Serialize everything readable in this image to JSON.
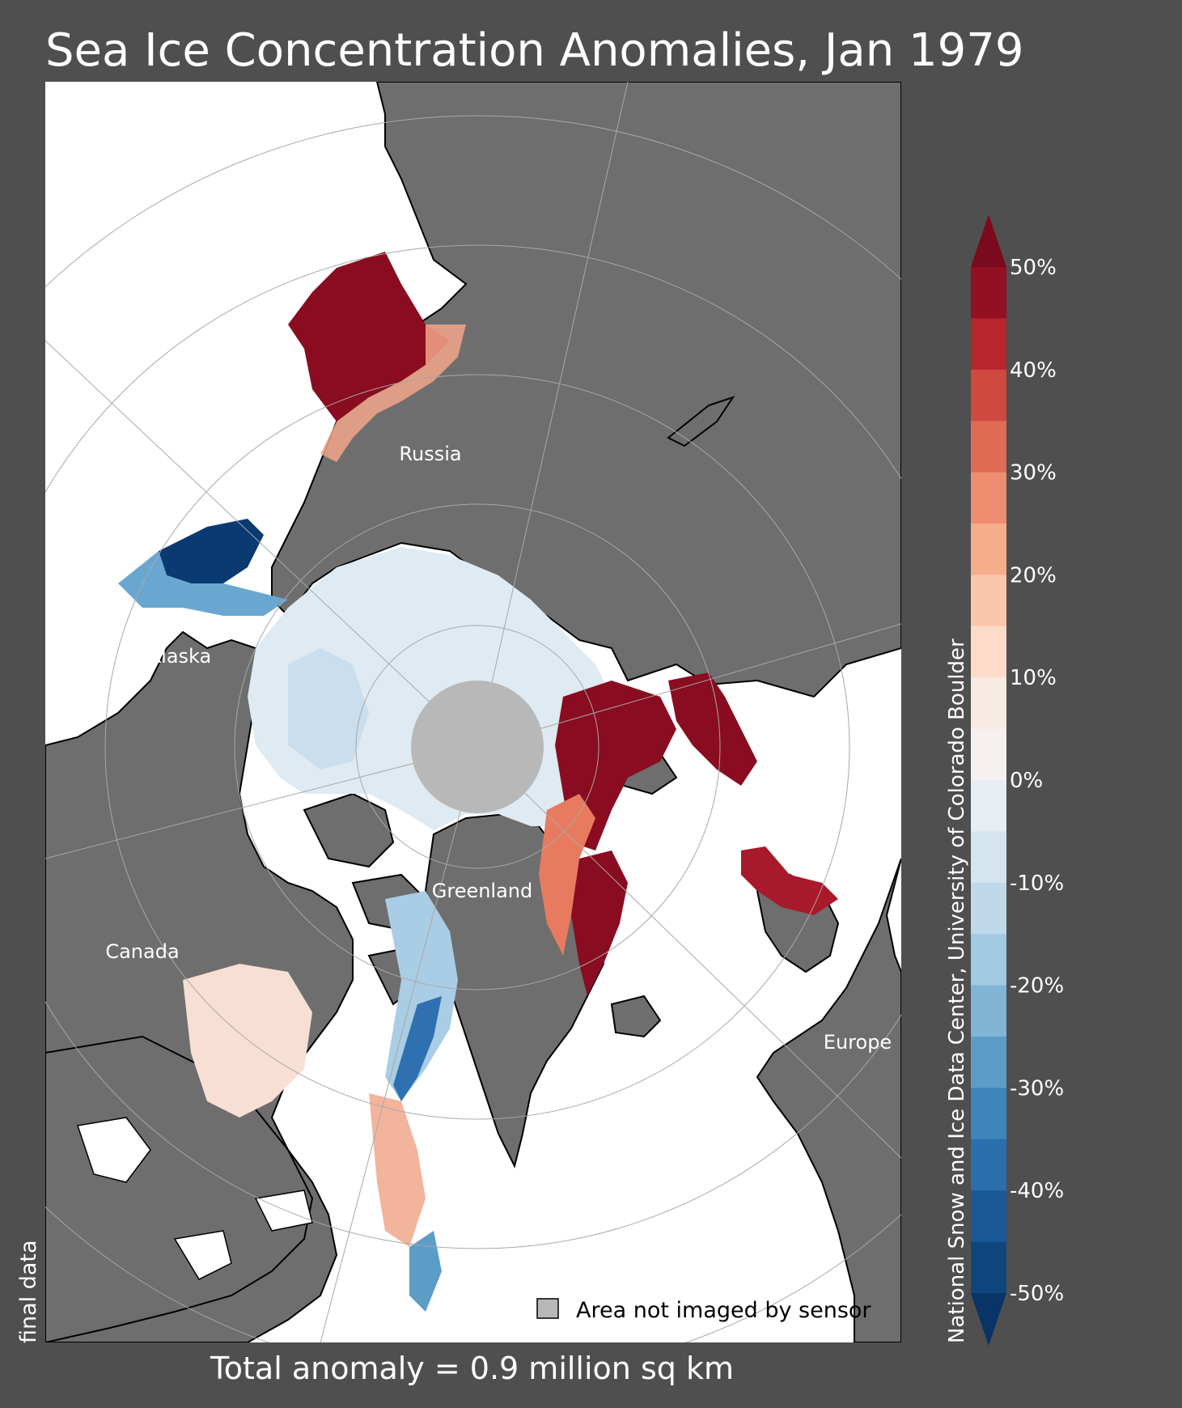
{
  "title": "Sea Ice Concentration Anomalies, Jan 1979",
  "footer": {
    "total_anomaly": "Total anomaly = 0.9 million sq km"
  },
  "status": "final data",
  "credit": "National Snow and Ice Data Center, University of Colorado Boulder",
  "map": {
    "region_labels": {
      "russia": "Russia",
      "alaska": "Alaska",
      "greenland": "Greenland",
      "canada": "Canada",
      "europe": "Europe"
    },
    "legend": {
      "no_data_label": "Area not imaged by sensor"
    },
    "colors": {
      "land": "#6e6e6e",
      "ocean_no_anomaly": "#ffffff",
      "pole_hole": "#b8b8b8",
      "background": "#4f4f4f"
    }
  },
  "colorbar": {
    "min_percent": -50,
    "max_percent": 50,
    "step_percent": 5,
    "extend": "both",
    "tick_labels": [
      "50%",
      "40%",
      "30%",
      "20%",
      "10%",
      "0%",
      "-10%",
      "-20%",
      "-30%",
      "-40%",
      "-50%"
    ],
    "colors_top_to_bottom": [
      "#930f22",
      "#b9252d",
      "#d0493f",
      "#df6b55",
      "#ee8d6f",
      "#f6ad89",
      "#fbc7aa",
      "#fcdcc9",
      "#f8eae4",
      "#f6f1ef",
      "#e6eef3",
      "#d5e5f0",
      "#bfd9ea",
      "#a1c9e0",
      "#80b5d6",
      "#5c9dc8",
      "#3e85bc",
      "#2a6eae",
      "#1a5898",
      "#0f457d"
    ],
    "extend_max_color": "#7a0a1c",
    "extend_min_color": "#083466"
  }
}
